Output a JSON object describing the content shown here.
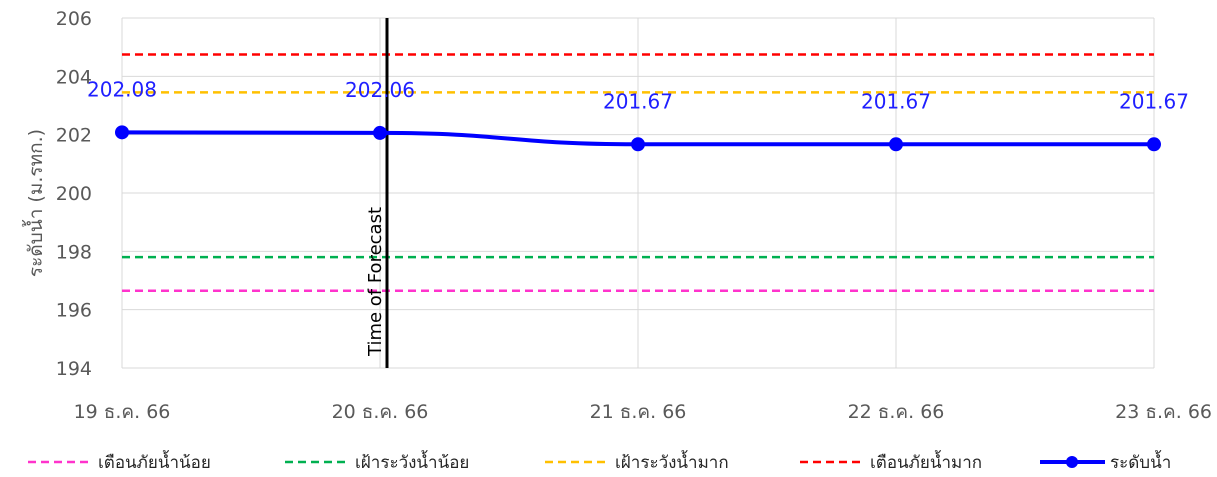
{
  "chart_data": {
    "type": "line",
    "categories": [
      "19 ธ.ค. 66",
      "20 ธ.ค. 66",
      "21 ธ.ค. 66",
      "22 ธ.ค. 66",
      "23 ธ.ค. 66"
    ],
    "ylabel": "ระดับน้ำ (ม.รทก.)",
    "xlabel": "",
    "ylim": [
      194,
      206
    ],
    "yticks": [
      194,
      196,
      198,
      200,
      202,
      204,
      206
    ],
    "grid": true,
    "legend_position": "bottom",
    "thresholds": [
      {
        "name": "เตือนภัยน้ำน้อย",
        "value": 196.65,
        "color": "#ff33cc"
      },
      {
        "name": "เฝ้าระวังน้ำน้อย",
        "value": 197.8,
        "color": "#00b050"
      },
      {
        "name": "เฝ้าระวังน้ำมาก",
        "value": 203.45,
        "color": "#ffc000"
      },
      {
        "name": "เตือนภัยน้ำมาก",
        "value": 204.75,
        "color": "#ff0000"
      }
    ],
    "series": [
      {
        "name": "ระดับน้ำ",
        "values": [
          202.08,
          202.06,
          201.67,
          201.67,
          201.67
        ],
        "labels": [
          "202.08",
          "202.06",
          "201.67",
          "201.67",
          "201.67"
        ],
        "color": "#0000ff"
      }
    ],
    "annotation": {
      "text": "Time of Forecast",
      "category": "20 ธ.ค. 66",
      "color": "#000000"
    }
  }
}
